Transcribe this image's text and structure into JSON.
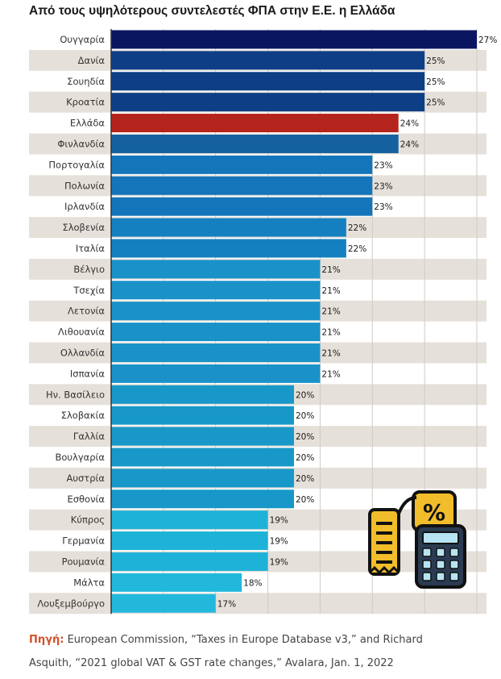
{
  "title": "Από τους υψηλότερους συντελεστές ΦΠΑ στην Ε.Ε. η Ελλάδα",
  "chart_data": {
    "type": "bar",
    "orientation": "horizontal",
    "categories": [
      "Ουγγαρία",
      "Δανία",
      "Σουηδία",
      "Κροατία",
      "Ελλάδα",
      "Φινλανδία",
      "Πορτογαλία",
      "Πολωνία",
      "Ιρλανδία",
      "Σλοβενία",
      "Ιταλία",
      "Βέλγιο",
      "Τσεχία",
      "Λετονία",
      "Λιθουανία",
      "Ολλανδία",
      "Ισπανία",
      "Ην. Βασίλειο",
      "Σλοβακία",
      "Γαλλία",
      "Βουλγαρία",
      "Αυστρία",
      "Εσθονία",
      "Κύπρος",
      "Γερμανία",
      "Ρουμανία",
      "Μάλτα",
      "Λουξεμβούργο"
    ],
    "values": [
      27,
      25,
      25,
      25,
      24,
      24,
      23,
      23,
      23,
      22,
      22,
      21,
      21,
      21,
      21,
      21,
      21,
      20,
      20,
      20,
      20,
      20,
      20,
      19,
      19,
      19,
      18,
      17
    ],
    "value_labels": [
      "27%",
      "25%",
      "25%",
      "25%",
      "24%",
      "24%",
      "23%",
      "23%",
      "23%",
      "22%",
      "22%",
      "21%",
      "21%",
      "21%",
      "21%",
      "21%",
      "21%",
      "20%",
      "20%",
      "20%",
      "20%",
      "20%",
      "20%",
      "19%",
      "19%",
      "19%",
      "18%",
      "17%"
    ],
    "xlim": [
      13,
      27
    ],
    "grid": true,
    "highlight_category": "Ελλάδα",
    "colors": {
      "27": "#0a1660",
      "25": "#0e3f86",
      "24": "#15619f",
      "23": "#1475ba",
      "22": "#1580c0",
      "21": "#1a92c8",
      "20": "#1898c8",
      "19": "#1fb2d8",
      "18": "#22b8dc",
      "17": "#22b8dc",
      "highlight": "#b5241c",
      "stripe": "#e5e0d9",
      "grid": "#cfcbc6"
    }
  },
  "source": {
    "label": "Πηγή:",
    "text": " European Commission,  “Taxes in Europe Database v3,” and Richard Asquith, “2021 global VAT & GST rate changes,” Avalara, Jan. 1, 2022"
  },
  "icon": "tax-receipt-calculator-icon"
}
